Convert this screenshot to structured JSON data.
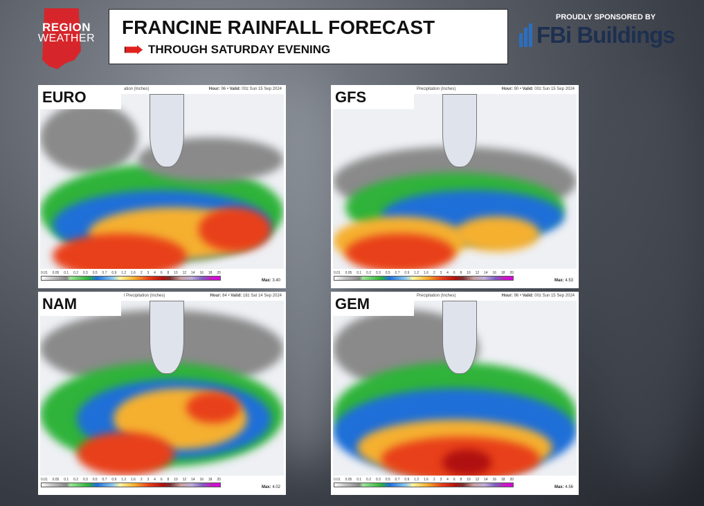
{
  "logo": {
    "line1": "REGION",
    "line2": "WEATHER"
  },
  "header": {
    "title": "FRANCINE RAINFALL FORECAST",
    "subtitle": "THROUGH SATURDAY EVENING"
  },
  "sponsor": {
    "label": "PROUDLY SPONSORED BY",
    "name": "FBi Buildings"
  },
  "legend_ticks": [
    "0.01",
    "0.05",
    "0.1",
    "0.2",
    "0.3",
    "0.5",
    "0.7",
    "0.9",
    "1.2",
    "1.6",
    "2",
    "3",
    "4",
    "6",
    "8",
    "10",
    "12",
    "14",
    "16",
    "18",
    "20"
  ],
  "panels": [
    {
      "model": "EURO",
      "product": "ation (Inches)",
      "hour": "96",
      "valid": "00z Sun 15 Sep 2024",
      "max": "3.40"
    },
    {
      "model": "GFS",
      "product": "Precipitation (Inches)",
      "hour": "90",
      "valid": "00z Sun 15 Sep 2024",
      "max": "4.53"
    },
    {
      "model": "NAM",
      "product": "l Precipitation (Inches)",
      "hour": "84",
      "valid": "18z Sat 14 Sep 2024",
      "max": "4.02"
    },
    {
      "model": "GEM",
      "product": "Precipitation (Inches)",
      "hour": "96",
      "valid": "00z Sun 15 Sep 2024",
      "max": "4.56"
    }
  ],
  "labels": {
    "hour": "Hour:",
    "valid": "Valid:",
    "max": "Max:"
  }
}
